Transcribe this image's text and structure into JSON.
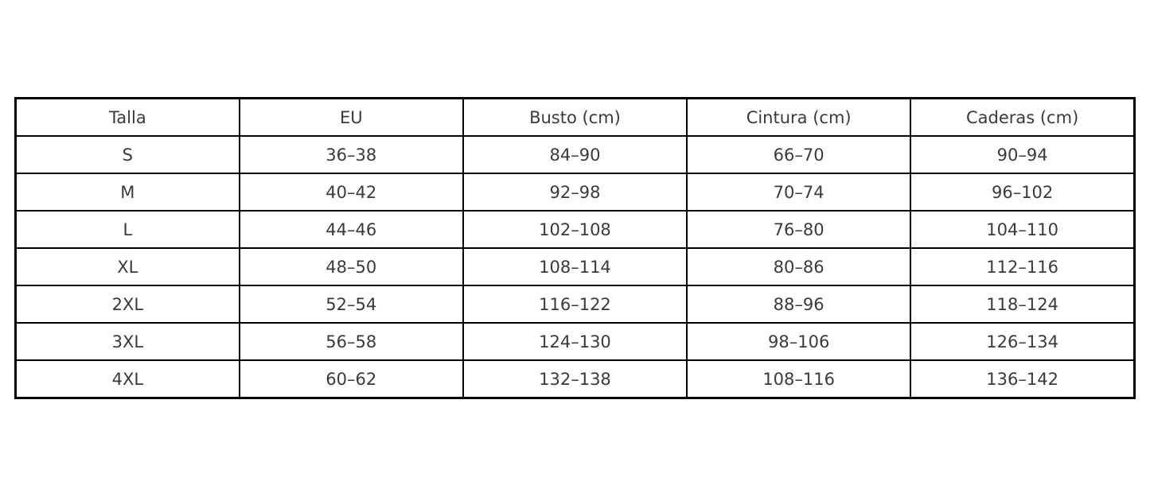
{
  "colors": {
    "background": "#ffffff",
    "border": "#000000",
    "text": "#3a3a3a"
  },
  "table": {
    "headers": [
      "Talla",
      "EU",
      "Busto (cm)",
      "Cintura (cm)",
      "Caderas (cm)"
    ],
    "rows": [
      [
        "S",
        "36–38",
        "84–90",
        "66–70",
        "90–94"
      ],
      [
        "M",
        "40–42",
        "92–98",
        "70–74",
        "96–102"
      ],
      [
        "L",
        "44–46",
        "102–108",
        "76–80",
        "104–110"
      ],
      [
        "XL",
        "48–50",
        "108–114",
        "80–86",
        "112–116"
      ],
      [
        "2XL",
        "52–54",
        "116–122",
        "88–96",
        "118–124"
      ],
      [
        "3XL",
        "56–58",
        "124–130",
        "98–106",
        "126–134"
      ],
      [
        "4XL",
        "60–62",
        "132–138",
        "108–116",
        "136–142"
      ]
    ]
  },
  "chart_data": {
    "type": "table",
    "title": "",
    "columns": [
      "Talla",
      "EU",
      "Busto (cm)",
      "Cintura (cm)",
      "Caderas (cm)"
    ],
    "rows": [
      {
        "talla": "S",
        "eu": "36–38",
        "busto_cm": "84–90",
        "cintura_cm": "66–70",
        "caderas_cm": "90–94"
      },
      {
        "talla": "M",
        "eu": "40–42",
        "busto_cm": "92–98",
        "cintura_cm": "70–74",
        "caderas_cm": "96–102"
      },
      {
        "talla": "L",
        "eu": "44–46",
        "busto_cm": "102–108",
        "cintura_cm": "76–80",
        "caderas_cm": "104–110"
      },
      {
        "talla": "XL",
        "eu": "48–50",
        "busto_cm": "108–114",
        "cintura_cm": "80–86",
        "caderas_cm": "112–116"
      },
      {
        "talla": "2XL",
        "eu": "52–54",
        "busto_cm": "116–122",
        "cintura_cm": "88–96",
        "caderas_cm": "118–124"
      },
      {
        "talla": "3XL",
        "eu": "56–58",
        "busto_cm": "124–130",
        "cintura_cm": "98–106",
        "caderas_cm": "126–134"
      },
      {
        "talla": "4XL",
        "eu": "60–62",
        "busto_cm": "132–138",
        "cintura_cm": "108–116",
        "caderas_cm": "136–142"
      }
    ]
  }
}
